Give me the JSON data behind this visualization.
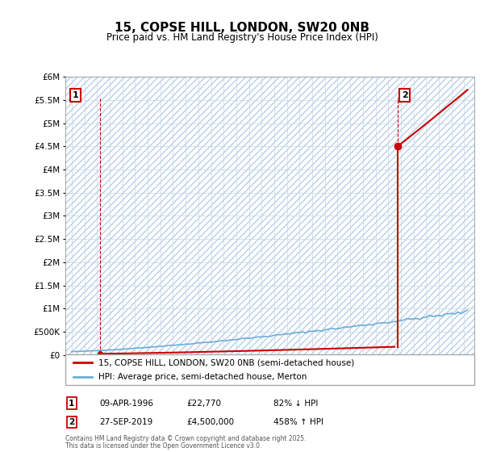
{
  "title": "15, COPSE HILL, LONDON, SW20 0NB",
  "subtitle": "Price paid vs. HM Land Registry's House Price Index (HPI)",
  "legend_line1": "15, COPSE HILL, LONDON, SW20 0NB (semi-detached house)",
  "legend_line2": "HPI: Average price, semi-detached house, Merton",
  "annotation1_date": "09-APR-1996",
  "annotation1_price": "£22,770",
  "annotation1_hpi": "82% ↓ HPI",
  "annotation2_date": "27-SEP-2019",
  "annotation2_price": "£4,500,000",
  "annotation2_hpi": "458% ↑ HPI",
  "footnote_line1": "Contains HM Land Registry data © Crown copyright and database right 2025.",
  "footnote_line2": "This data is licensed under the Open Government Licence v3.0.",
  "sale1_year": 1996.27,
  "sale1_price": 22770,
  "sale2_year": 2019.74,
  "sale2_price": 4500000,
  "hpi_color": "#6baed6",
  "price_color": "#cc0000",
  "bg_color": "#ffffff",
  "grid_color": "#c8d8e8",
  "hatch_color": "#ddeeff",
  "ylim_max": 6000000,
  "ylim_min": 0,
  "xlim_min": 1993.5,
  "xlim_max": 2025.8
}
